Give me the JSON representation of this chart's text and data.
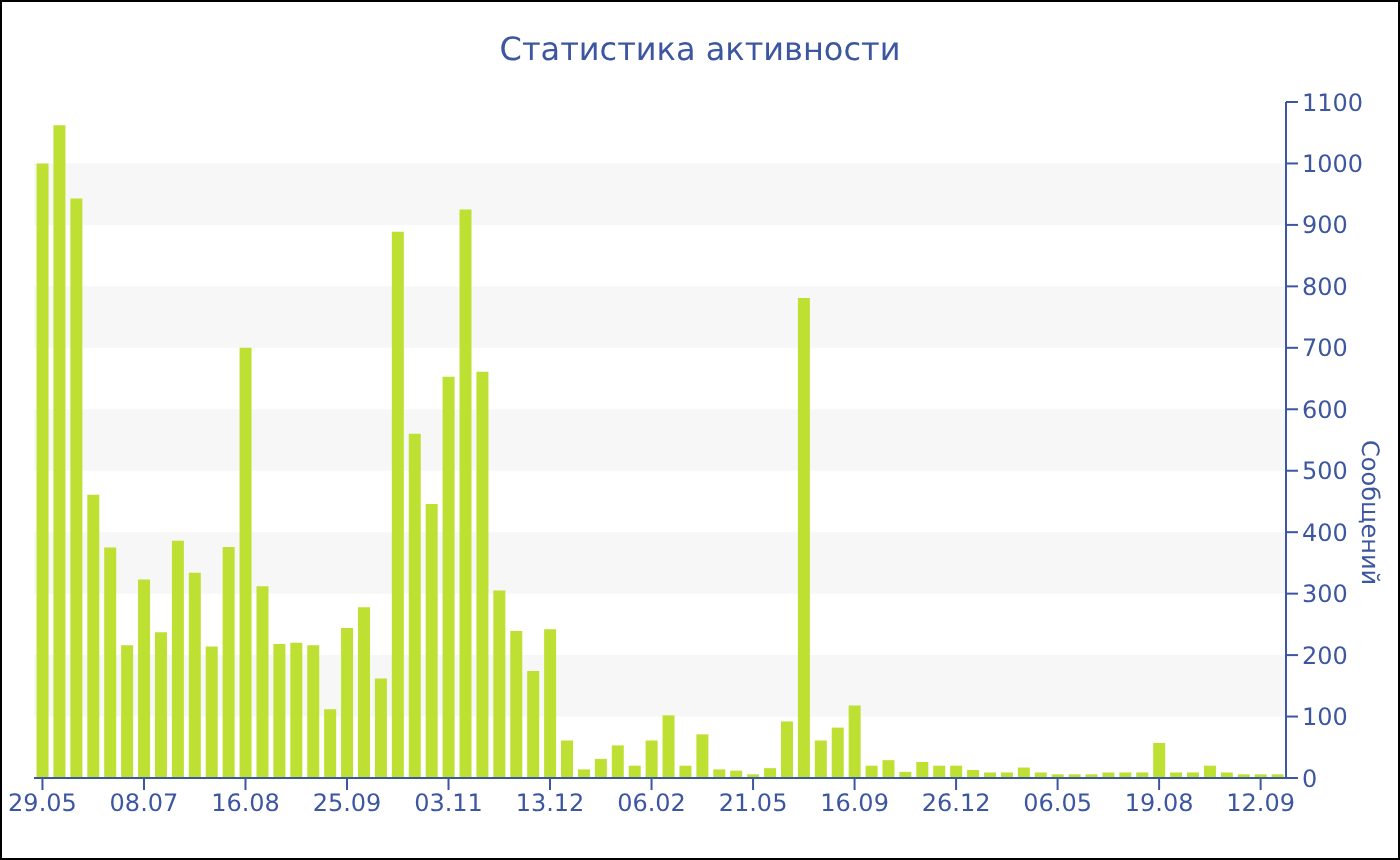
{
  "chart_data": {
    "type": "bar",
    "title": "Статистика активности",
    "y2label": "Сообщений",
    "categories": [
      "29.05",
      null,
      null,
      null,
      null,
      null,
      "08.07",
      null,
      null,
      null,
      null,
      null,
      "16.08",
      null,
      null,
      null,
      null,
      null,
      "25.09",
      null,
      null,
      null,
      null,
      null,
      "03.11",
      null,
      null,
      null,
      null,
      null,
      "13.12",
      null,
      null,
      null,
      null,
      null,
      "06.02",
      null,
      null,
      null,
      null,
      null,
      "21.05",
      null,
      null,
      null,
      null,
      null,
      "16.09",
      null,
      null,
      null,
      null,
      null,
      "26.12",
      null,
      null,
      null,
      null,
      null,
      "06.05",
      null,
      null,
      null,
      null,
      null,
      "19.08",
      null,
      null,
      null,
      null,
      null,
      "12.09",
      null
    ],
    "series": [
      {
        "axis": "y2",
        "color": "#bde032",
        "values": [
          1000,
          1062,
          943,
          461,
          375,
          216,
          323,
          237,
          386,
          334,
          214,
          376,
          700,
          312,
          218,
          220,
          216,
          112,
          244,
          278,
          162,
          889,
          560,
          446,
          653,
          925,
          661,
          305,
          239,
          174,
          242,
          61,
          14,
          31,
          53,
          20,
          61,
          102,
          20,
          71,
          14,
          12,
          6,
          16,
          92,
          781,
          61,
          82,
          118,
          20,
          29,
          10,
          26,
          20,
          20,
          13,
          9,
          9,
          17,
          9,
          6,
          6,
          6,
          9,
          9,
          9,
          57,
          9,
          9,
          20,
          9,
          6,
          6,
          6
        ]
      }
    ],
    "y2lim": [
      0,
      1100
    ],
    "y2ticks": [
      0,
      100,
      200,
      300,
      400,
      500,
      600,
      700,
      800,
      900,
      1000,
      1100
    ],
    "bands": [
      {
        "axis": "y2",
        "from": 100,
        "to": 200,
        "color": "#f7f7f7"
      },
      {
        "axis": "y2",
        "from": 300,
        "to": 400,
        "color": "#f7f7f7"
      },
      {
        "axis": "y2",
        "from": 500,
        "to": 600,
        "color": "#f7f7f7"
      },
      {
        "axis": "y2",
        "from": 700,
        "to": 800,
        "color": "#f7f7f7"
      },
      {
        "axis": "y2",
        "from": 900,
        "to": 1000,
        "color": "#f7f7f7"
      }
    ],
    "legend": false
  }
}
